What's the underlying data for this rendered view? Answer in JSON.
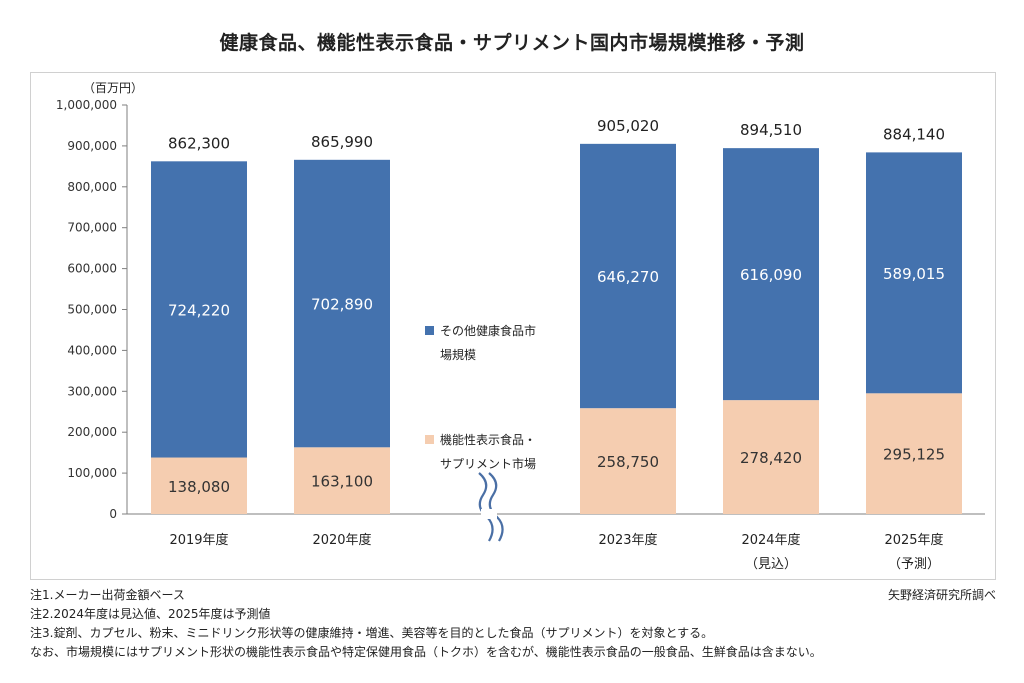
{
  "title": "健康食品、機能性表示食品・サプリメント国内市場規模推移・予測",
  "chart_data": {
    "type": "bar",
    "stacked": true,
    "unit_label": "（百万円）",
    "categories": [
      "2019年度",
      "2020年度",
      "2023年度",
      "2024年度",
      "2025年度"
    ],
    "category_sublabels": [
      "",
      "",
      "",
      "（見込）",
      "（予測）"
    ],
    "series": [
      {
        "name": "機能性表示食品・サプリメント市場",
        "color": "#f5cdb0",
        "values": [
          138080,
          163100,
          258750,
          278420,
          295125
        ]
      },
      {
        "name": "その他健康食品市場規模",
        "color": "#4472ae",
        "values": [
          724220,
          702890,
          646270,
          616090,
          589015
        ]
      }
    ],
    "value_labels": [
      [
        "138,080",
        "163,100",
        "258,750",
        "278,420",
        "295,125"
      ],
      [
        "724,220",
        "702,890",
        "646,270",
        "616,090",
        "589,015"
      ]
    ],
    "totals": [
      "862,300",
      "865,990",
      "905,020",
      "894,510",
      "884,140"
    ],
    "y_ticks": [
      "0",
      "100,000",
      "200,000",
      "300,000",
      "400,000",
      "500,000",
      "600,000",
      "700,000",
      "800,000",
      "900,000",
      "1,000,000"
    ],
    "ylim": [
      0,
      1000000
    ],
    "legend_items": [
      {
        "lines": [
          "その他健康食品市",
          "場規模"
        ],
        "color": "#4472ae"
      },
      {
        "lines": [
          "機能性表示食品・",
          "サプリメント市場"
        ],
        "color": "#f5cdb0"
      }
    ],
    "axis_break": true,
    "grid": false
  },
  "notes": [
    "注1.メーカー出荷金額ベース",
    "注2.2024年度は見込値、2025年度は予測値",
    "注3.錠剤、カプセル、粉末、ミニドリンク形状等の健康維持・増進、美容等を目的とした食品（サプリメント）を対象とする。",
    "なお、市場規模にはサプリメント形状の機能性表示食品や特定保健用食品（トクホ）を含むが、機能性表示食品の一般食品、生鮮食品は含まない。"
  ],
  "source": "矢野経済研究所調べ"
}
